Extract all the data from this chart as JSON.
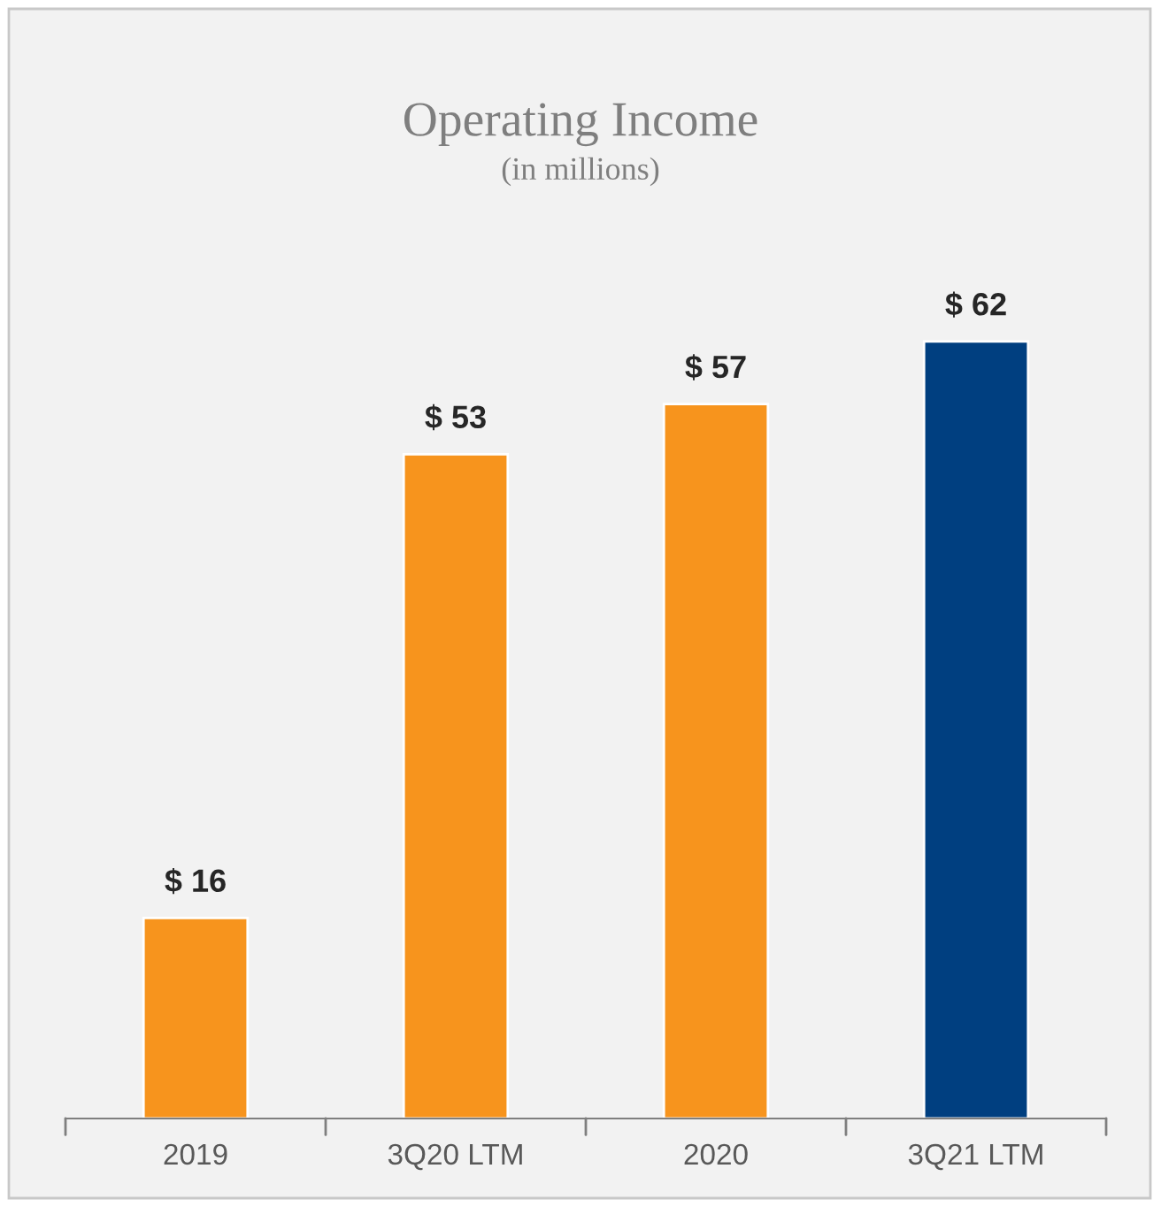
{
  "chart_data": {
    "type": "bar",
    "title": "Operating Income",
    "subtitle": "(in millions)",
    "categories": [
      "2019",
      "3Q20 LTM",
      "2020",
      "3Q21 LTM"
    ],
    "values": [
      16,
      53,
      57,
      62
    ],
    "colors": [
      "#f7941d",
      "#f7941d",
      "#f7941d",
      "#003f80"
    ],
    "value_labels": [
      "$ 16",
      "$ 53",
      "$ 57",
      "$ 62"
    ],
    "grid": false,
    "legend": false
  }
}
